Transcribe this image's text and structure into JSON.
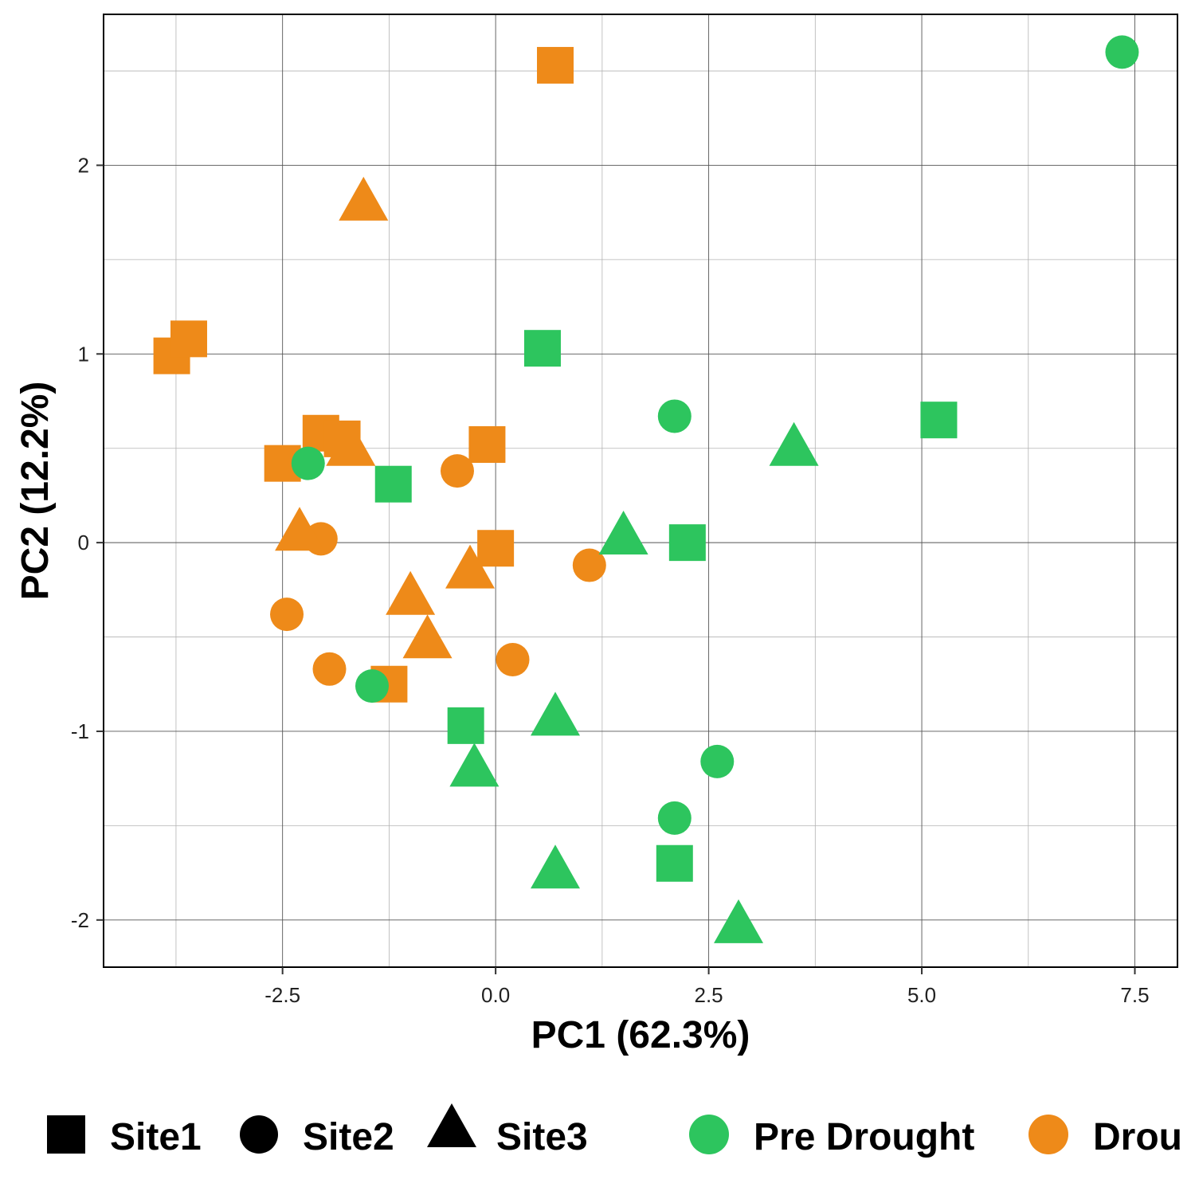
{
  "chart_data": {
    "type": "scatter",
    "title": "",
    "xlabel": "PC1 (62.3%)",
    "ylabel": "PC2 (12.2%)",
    "xlim": [
      -4.6,
      8.0
    ],
    "ylim": [
      -2.25,
      2.8
    ],
    "x_ticks": [
      -2.5,
      0.0,
      2.5,
      5.0,
      7.5
    ],
    "x_tick_labels": [
      "-2.5",
      "0.0",
      "2.5",
      "5.0",
      "7.5"
    ],
    "y_ticks": [
      -2,
      -1,
      0,
      1,
      2
    ],
    "y_tick_labels": [
      "-2",
      "-1",
      "0",
      "1",
      "2"
    ],
    "grid": true,
    "legend_position": "bottom",
    "shape_legend": [
      {
        "name": "Site1",
        "shape": "square"
      },
      {
        "name": "Site2",
        "shape": "circle"
      },
      {
        "name": "Site3",
        "shape": "triangle"
      }
    ],
    "color_legend": [
      {
        "name": "Pre Drought",
        "color": "#2dc55e"
      },
      {
        "name": "Drou",
        "color": "#ee8a19"
      }
    ],
    "points": [
      {
        "x": 0.7,
        "y": 2.53,
        "site": "Site1",
        "group": "Drought"
      },
      {
        "x": -3.8,
        "y": 0.99,
        "site": "Site1",
        "group": "Drought"
      },
      {
        "x": -3.6,
        "y": 1.08,
        "site": "Site1",
        "group": "Drought"
      },
      {
        "x": -2.5,
        "y": 0.42,
        "site": "Site1",
        "group": "Drought"
      },
      {
        "x": -2.05,
        "y": 0.58,
        "site": "Site1",
        "group": "Drought"
      },
      {
        "x": -1.8,
        "y": 0.55,
        "site": "Site1",
        "group": "Drought"
      },
      {
        "x": -0.1,
        "y": 0.52,
        "site": "Site1",
        "group": "Drought"
      },
      {
        "x": 0.0,
        "y": -0.03,
        "site": "Site1",
        "group": "Drought"
      },
      {
        "x": -1.25,
        "y": -0.75,
        "site": "Site1",
        "group": "Drought"
      },
      {
        "x": -0.45,
        "y": 0.38,
        "site": "Site2",
        "group": "Drought"
      },
      {
        "x": -2.05,
        "y": 0.02,
        "site": "Site2",
        "group": "Drought"
      },
      {
        "x": -2.45,
        "y": -0.38,
        "site": "Site2",
        "group": "Drought"
      },
      {
        "x": -1.95,
        "y": -0.67,
        "site": "Site2",
        "group": "Drought"
      },
      {
        "x": 0.2,
        "y": -0.62,
        "site": "Site2",
        "group": "Drought"
      },
      {
        "x": 1.1,
        "y": -0.12,
        "site": "Site2",
        "group": "Drought"
      },
      {
        "x": -1.55,
        "y": 1.8,
        "site": "Site3",
        "group": "Drought"
      },
      {
        "x": -1.7,
        "y": 0.5,
        "site": "Site3",
        "group": "Drought"
      },
      {
        "x": -2.3,
        "y": 0.05,
        "site": "Site3",
        "group": "Drought"
      },
      {
        "x": -0.3,
        "y": -0.15,
        "site": "Site3",
        "group": "Drought"
      },
      {
        "x": -1.0,
        "y": -0.29,
        "site": "Site3",
        "group": "Drought"
      },
      {
        "x": -0.8,
        "y": -0.52,
        "site": "Site3",
        "group": "Drought"
      },
      {
        "x": 0.55,
        "y": 1.03,
        "site": "Site1",
        "group": "Pre Drought"
      },
      {
        "x": 5.2,
        "y": 0.65,
        "site": "Site1",
        "group": "Pre Drought"
      },
      {
        "x": -1.2,
        "y": 0.31,
        "site": "Site1",
        "group": "Pre Drought"
      },
      {
        "x": 2.25,
        "y": 0.0,
        "site": "Site1",
        "group": "Pre Drought"
      },
      {
        "x": -0.35,
        "y": -0.97,
        "site": "Site1",
        "group": "Pre Drought"
      },
      {
        "x": 2.1,
        "y": -1.7,
        "site": "Site1",
        "group": "Pre Drought"
      },
      {
        "x": 7.35,
        "y": 2.6,
        "site": "Site2",
        "group": "Pre Drought"
      },
      {
        "x": 2.1,
        "y": 0.67,
        "site": "Site2",
        "group": "Pre Drought"
      },
      {
        "x": -2.2,
        "y": 0.42,
        "site": "Site2",
        "group": "Pre Drought"
      },
      {
        "x": -1.45,
        "y": -0.76,
        "site": "Site2",
        "group": "Pre Drought"
      },
      {
        "x": 2.6,
        "y": -1.16,
        "site": "Site2",
        "group": "Pre Drought"
      },
      {
        "x": 2.1,
        "y": -1.46,
        "site": "Site2",
        "group": "Pre Drought"
      },
      {
        "x": 3.5,
        "y": 0.5,
        "site": "Site3",
        "group": "Pre Drought"
      },
      {
        "x": 1.5,
        "y": 0.03,
        "site": "Site3",
        "group": "Pre Drought"
      },
      {
        "x": 0.7,
        "y": -0.93,
        "site": "Site3",
        "group": "Pre Drought"
      },
      {
        "x": -0.25,
        "y": -1.2,
        "site": "Site3",
        "group": "Pre Drought"
      },
      {
        "x": 0.7,
        "y": -1.74,
        "site": "Site3",
        "group": "Pre Drought"
      },
      {
        "x": 2.85,
        "y": -2.03,
        "site": "Site3",
        "group": "Pre Drought"
      }
    ]
  },
  "colors": {
    "pre_drought": "#2dc55e",
    "drought": "#ee8a19",
    "grid": "#b3b3b3",
    "frame": "#000000"
  }
}
